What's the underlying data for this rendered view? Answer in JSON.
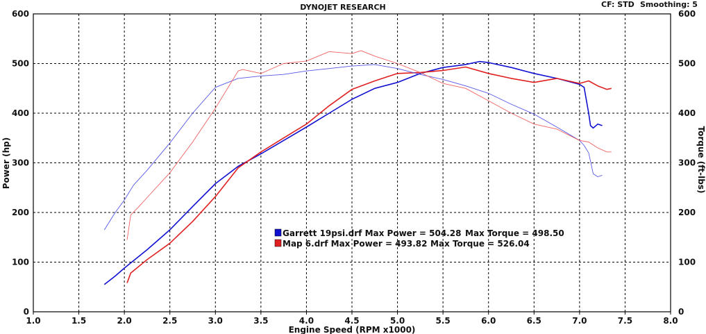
{
  "header": {
    "title": "DYNOJET RESEARCH",
    "cf_label": "CF: STD",
    "smoothing_label": "Smoothing: 5"
  },
  "chart_data": {
    "type": "line",
    "title": "DYNOJET RESEARCH",
    "xlabel": "Engine Speed (RPM x1000)",
    "ylabel_left": "Power (hp)",
    "ylabel_right": "Torque (ft-lbs)",
    "xlim": [
      1.0,
      8.0
    ],
    "ylim_left": [
      0,
      600
    ],
    "ylim_right": [
      0,
      600
    ],
    "x_ticks": [
      "1.0",
      "1.5",
      "2.0",
      "2.5",
      "3.0",
      "3.5",
      "4.0",
      "4.5",
      "5.0",
      "5.5",
      "6.0",
      "6.5",
      "7.0",
      "7.5",
      "8.0"
    ],
    "y_ticks_left": [
      "0",
      "100",
      "200",
      "300",
      "400",
      "500",
      "600"
    ],
    "y_ticks_right": [
      "0",
      "100",
      "200",
      "300",
      "400",
      "500",
      "600"
    ],
    "grid": true,
    "legend": "center",
    "legend_entries": [
      {
        "name": "Garrett 19psi.drf",
        "text": "Garrett 19psi.drf Max Power = 504.28",
        "torque_text": "Max Torque = 498.50",
        "color": "#1010d0"
      },
      {
        "name": "Map 6.drf",
        "text": "Map 6.drf Max Power = 493.82",
        "torque_text": "Max Torque = 526.04",
        "color": "#e02020"
      }
    ],
    "series": [
      {
        "name": "Garrett 19psi.drf Power",
        "file": "Garrett 19psi.drf",
        "quantity": "power",
        "color": "#1010d0",
        "stroke": "bold",
        "x": [
          1.78,
          1.9,
          2.0,
          2.25,
          2.5,
          2.75,
          3.0,
          3.25,
          3.5,
          3.75,
          4.0,
          4.25,
          4.5,
          4.75,
          5.0,
          5.25,
          5.5,
          5.75,
          5.9,
          6.0,
          6.25,
          6.5,
          6.75,
          7.0,
          7.05,
          7.1,
          7.12,
          7.15,
          7.2,
          7.25
        ],
        "values": [
          55,
          72,
          88,
          125,
          165,
          212,
          258,
          293,
          318,
          345,
          372,
          400,
          428,
          450,
          462,
          480,
          492,
          498,
          504,
          502,
          492,
          480,
          470,
          458,
          452,
          400,
          375,
          370,
          378,
          375
        ]
      },
      {
        "name": "Map 6.drf Power",
        "file": "Map 6.drf",
        "quantity": "power",
        "color": "#e02020",
        "stroke": "bold",
        "x": [
          2.03,
          2.07,
          2.15,
          2.25,
          2.5,
          2.75,
          3.0,
          3.25,
          3.5,
          3.75,
          4.0,
          4.25,
          4.5,
          4.75,
          5.0,
          5.25,
          5.5,
          5.75,
          6.0,
          6.25,
          6.5,
          6.75,
          7.0,
          7.1,
          7.2,
          7.3,
          7.35
        ],
        "values": [
          58,
          78,
          90,
          105,
          138,
          182,
          232,
          290,
          322,
          350,
          378,
          415,
          448,
          465,
          480,
          482,
          486,
          493,
          480,
          470,
          462,
          470,
          460,
          465,
          455,
          448,
          450
        ]
      },
      {
        "name": "Garrett 19psi.drf Torque",
        "file": "Garrett 19psi.drf",
        "quantity": "torque",
        "color": "#5555e8",
        "stroke": "thin",
        "x": [
          1.78,
          1.9,
          2.0,
          2.1,
          2.25,
          2.5,
          2.75,
          3.0,
          3.25,
          3.5,
          3.75,
          4.0,
          4.25,
          4.5,
          4.75,
          5.0,
          5.25,
          5.5,
          5.75,
          6.0,
          6.25,
          6.5,
          6.75,
          7.0,
          7.05,
          7.1,
          7.15,
          7.2,
          7.25
        ],
        "values": [
          165,
          200,
          225,
          255,
          285,
          340,
          400,
          452,
          470,
          475,
          478,
          485,
          490,
          495,
          498,
          490,
          478,
          468,
          455,
          440,
          418,
          398,
          372,
          345,
          335,
          320,
          278,
          272,
          275
        ]
      },
      {
        "name": "Map 6.drf Torque",
        "file": "Map 6.drf",
        "quantity": "torque",
        "color": "#f06060",
        "stroke": "thin",
        "x": [
          2.03,
          2.07,
          2.15,
          2.25,
          2.5,
          2.75,
          3.0,
          3.25,
          3.3,
          3.5,
          3.75,
          4.0,
          4.25,
          4.5,
          4.6,
          4.75,
          5.0,
          5.25,
          5.5,
          5.75,
          6.0,
          6.25,
          6.5,
          6.75,
          7.0,
          7.1,
          7.2,
          7.3,
          7.35
        ],
        "values": [
          145,
          195,
          210,
          230,
          280,
          342,
          410,
          485,
          488,
          480,
          500,
          505,
          524,
          520,
          526,
          515,
          500,
          482,
          460,
          450,
          425,
          400,
          378,
          368,
          345,
          342,
          330,
          322,
          322
        ]
      }
    ]
  }
}
